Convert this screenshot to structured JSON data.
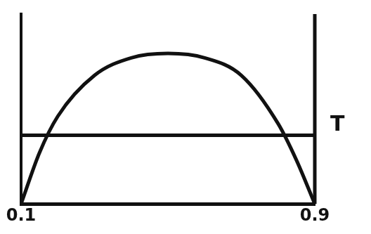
{
  "chart_data": {
    "type": "line",
    "x": [
      0.1,
      0.15,
      0.2,
      0.3,
      0.4,
      0.5,
      0.6,
      0.7,
      0.8,
      0.85,
      0.9
    ],
    "series": [
      {
        "color": "#111111",
        "values": [
          0,
          0.35,
          0.6,
          0.88,
          1.0,
          1.03,
          1.0,
          0.88,
          0.55,
          0.3,
          0
        ]
      },
      {
        "name": "T",
        "color": "#111111",
        "values": [
          0.47,
          0.47,
          0.47,
          0.47,
          0.47,
          0.47,
          0.47,
          0.47,
          0.47,
          0.47,
          0.47
        ]
      }
    ],
    "xlim": [
      0.1,
      0.9
    ],
    "xticks": [
      0.1,
      0.9
    ],
    "ylim": [
      0,
      1.3
    ],
    "grid": false,
    "tick_labels": "x"
  }
}
